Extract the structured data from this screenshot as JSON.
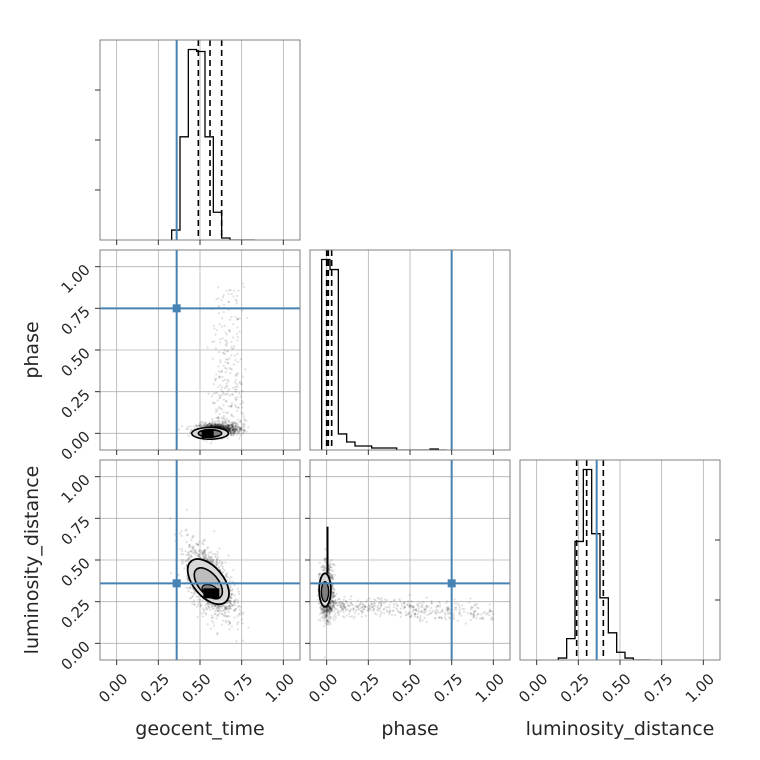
{
  "chart_data": {
    "type": "corner",
    "parameters": [
      "geocent_time",
      "phase",
      "luminosity_distance"
    ],
    "axis_labels": [
      "geocent_time",
      "phase",
      "luminosity_distance"
    ],
    "ylabels": [
      "phase",
      "luminosity_distance"
    ],
    "range": [
      -0.1,
      1.1
    ],
    "ticks": [
      0.0,
      0.25,
      0.5,
      0.75,
      1.0
    ],
    "tick_labels": [
      "0.00",
      "0.25",
      "0.50",
      "0.75",
      "1.00"
    ],
    "grid": true,
    "colors": {
      "truth": "#4682b4",
      "hist": "#000000",
      "quantile": "#000000",
      "frame": "#808080",
      "grid": "#b0b0b0",
      "points": "#000000",
      "contour_fill_inner": "#7f7f7f",
      "contour_fill_outer": "#d9d9d9"
    },
    "truths": {
      "geocent_time": 0.36,
      "phase": 0.75,
      "luminosity_distance": 0.36
    },
    "quantiles": {
      "geocent_time": [
        0.49,
        0.56,
        0.63
      ],
      "phase": [
        0.0,
        0.01,
        0.03
      ],
      "luminosity_distance": [
        0.24,
        0.3,
        0.4
      ]
    },
    "histograms": {
      "geocent_time": {
        "edges": [
          0.33,
          0.38,
          0.43,
          0.48,
          0.53,
          0.58,
          0.63,
          0.68,
          0.73,
          0.78,
          0.83
        ],
        "counts": [
          5,
          52,
          96,
          95,
          52,
          14,
          1,
          0,
          0,
          0
        ]
      },
      "phase": {
        "edges": [
          -0.03,
          0.02,
          0.07,
          0.12,
          0.17,
          0.22,
          0.27,
          0.32,
          0.37,
          0.42,
          0.47,
          0.52,
          0.57,
          0.62,
          0.67,
          0.72
        ],
        "counts": [
          95,
          90,
          8,
          4,
          2,
          2,
          1,
          1,
          1,
          0,
          0,
          0,
          0,
          0.5,
          0
        ]
      },
      "luminosity_distance": {
        "edges": [
          0.13,
          0.18,
          0.23,
          0.28,
          0.33,
          0.38,
          0.43,
          0.48,
          0.53,
          0.58,
          0.63,
          0.68
        ],
        "counts": [
          1,
          11,
          61,
          98,
          65,
          32,
          14,
          4,
          1,
          0,
          0
        ]
      }
    },
    "scatter_clouds": {
      "phase_vs_geocent_time": {
        "x_center": 0.6,
        "y_center": 0.02,
        "x_spread": 0.06,
        "y_spread": 0.02,
        "tail_to_y": 0.9,
        "tail_x": [
          0.58,
          0.76
        ]
      },
      "luminosity_distance_vs_geocent_time": {
        "x_center": 0.56,
        "y_center": 0.37,
        "x_spread": 0.07,
        "y_spread": 0.09,
        "tilt": -0.8
      },
      "luminosity_distance_vs_phase": {
        "x_center": 0.0,
        "y_center": 0.3,
        "x_spread": 0.02,
        "y_spread": 0.08,
        "tail_to_x": 1.0,
        "tail_y": 0.18
      }
    }
  }
}
